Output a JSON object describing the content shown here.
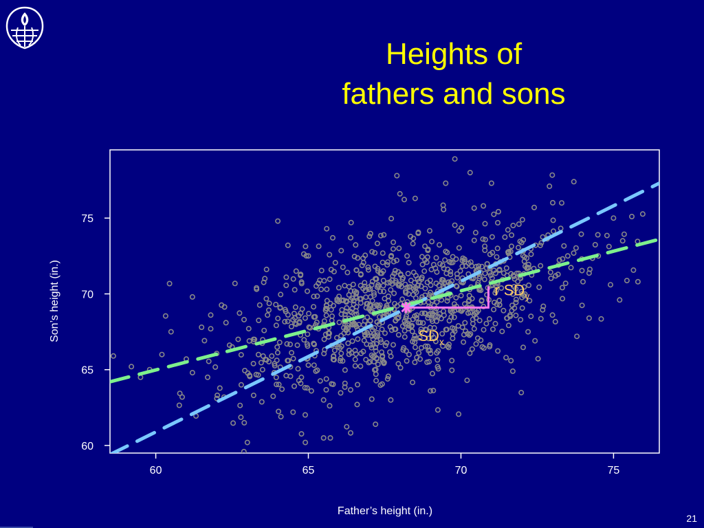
{
  "slide": {
    "title_line1": "Heights of",
    "title_line2": "fathers and sons",
    "page_number": "21",
    "title_color": "#ffff00",
    "background_color": "#000080"
  },
  "logo": {
    "icon": "globe-flame-shield-icon"
  },
  "chart_data": {
    "type": "scatter",
    "title": "",
    "xlabel": "Father’s height (in.)",
    "ylabel": "Son’s height (in.)",
    "xlim": [
      58.5,
      76.5
    ],
    "ylim": [
      59.5,
      79.5
    ],
    "xticks": [
      60,
      65,
      70,
      75
    ],
    "yticks": [
      60,
      65,
      70,
      75
    ],
    "grid": false,
    "point_color": "#888888",
    "point_count_approx": 1078,
    "series": [
      {
        "points": [
          [
            59.2,
            65.2
          ],
          [
            59.5,
            64.5
          ],
          [
            59.8,
            65.0
          ],
          [
            60.2,
            66.0
          ],
          [
            60.5,
            67.5
          ],
          [
            61.0,
            65.7
          ],
          [
            61.2,
            64.8
          ],
          [
            61.2,
            69.8
          ],
          [
            61.5,
            67.8
          ],
          [
            61.7,
            64.5
          ],
          [
            61.8,
            67.7
          ],
          [
            61.8,
            68.6
          ],
          [
            62.0,
            63.1
          ],
          [
            62.3,
            68.1
          ],
          [
            62.5,
            66.5
          ],
          [
            62.7,
            67.0
          ],
          [
            62.8,
            64.0
          ],
          [
            62.9,
            61.5
          ],
          [
            63.0,
            60.2
          ],
          [
            63.2,
            65.4
          ],
          [
            63.3,
            70.4
          ],
          [
            63.5,
            65.0
          ],
          [
            63.8,
            65.9
          ],
          [
            64.0,
            74.8
          ],
          [
            64.1,
            61.9
          ],
          [
            64.3,
            66.7
          ],
          [
            64.5,
            62.2
          ],
          [
            64.6,
            71.5
          ],
          [
            64.8,
            69.0
          ],
          [
            64.9,
            60.2
          ],
          [
            65.0,
            65.3
          ],
          [
            65.2,
            67.8
          ],
          [
            65.5,
            60.5
          ],
          [
            65.5,
            63.0
          ],
          [
            65.6,
            74.3
          ],
          [
            65.8,
            73.7
          ],
          [
            66.0,
            69.5
          ],
          [
            66.2,
            64.1
          ],
          [
            66.4,
            74.7
          ],
          [
            66.5,
            68.0
          ],
          [
            66.6,
            62.7
          ],
          [
            66.8,
            66.2
          ],
          [
            67.0,
            73.8
          ],
          [
            67.2,
            61.4
          ],
          [
            67.3,
            70.5
          ],
          [
            67.5,
            68.5
          ],
          [
            67.7,
            63.0
          ],
          [
            67.9,
            77.8
          ],
          [
            68.0,
            76.6
          ],
          [
            68.2,
            69.3
          ],
          [
            68.3,
            66.0
          ],
          [
            68.5,
            76.3
          ],
          [
            68.6,
            74.0
          ],
          [
            68.8,
            71.5
          ],
          [
            69.0,
            63.6
          ],
          [
            69.2,
            68.2
          ],
          [
            69.5,
            77.3
          ],
          [
            69.5,
            72.8
          ],
          [
            69.7,
            65.6
          ],
          [
            69.8,
            78.9
          ],
          [
            70.0,
            69.0
          ],
          [
            70.2,
            64.3
          ],
          [
            70.3,
            78.0
          ],
          [
            70.5,
            71.8
          ],
          [
            70.7,
            66.5
          ],
          [
            71.0,
            77.3
          ],
          [
            71.2,
            73.0
          ],
          [
            71.5,
            68.4
          ],
          [
            71.7,
            64.9
          ],
          [
            71.9,
            74.6
          ],
          [
            72.0,
            70.0
          ],
          [
            72.2,
            67.5
          ],
          [
            72.4,
            75.7
          ],
          [
            72.6,
            73.2
          ],
          [
            72.9,
            77.1
          ],
          [
            73.0,
            68.6
          ],
          [
            73.2,
            71.9
          ],
          [
            73.3,
            76.0
          ],
          [
            73.5,
            72.5
          ],
          [
            73.7,
            77.4
          ],
          [
            73.8,
            67.2
          ],
          [
            74.0,
            70.8
          ],
          [
            74.2,
            68.4
          ],
          [
            74.5,
            72.5
          ],
          [
            74.9,
            70.6
          ],
          [
            75.0,
            75.0
          ],
          [
            75.2,
            69.6
          ],
          [
            75.3,
            73.5
          ],
          [
            75.6,
            75.1
          ],
          [
            75.8,
            70.8
          ]
        ]
      }
    ],
    "lines": [
      {
        "name": "SD line",
        "color": "#7ac8ff",
        "x1": 58.5,
        "y1": 59.4,
        "x2": 76.5,
        "y2": 77.3
      },
      {
        "name": "regression line",
        "color": "#7ef08c",
        "x1": 58.5,
        "y1": 64.2,
        "x2": 76.5,
        "y2": 73.6
      }
    ],
    "mean_point": {
      "x": 68.2,
      "y": 69.1,
      "color": "#ff77ee"
    },
    "annotations": [
      {
        "label_main": "SD",
        "label_sub": "x",
        "color": "#ffcc66",
        "x": 68.6,
        "y": 66.9
      },
      {
        "label_main": "r SD",
        "label_sub": "y",
        "color": "#ffcc66",
        "x": 71.1,
        "y": 69.9
      }
    ],
    "sd_bracket": {
      "color": "#ff77ee",
      "x_start": 68.2,
      "x_end": 70.9,
      "y_base": 69.1,
      "y_top": 70.5
    }
  }
}
